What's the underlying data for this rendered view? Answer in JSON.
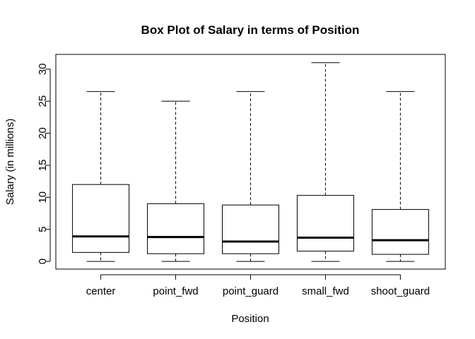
{
  "chart_data": {
    "type": "boxplot",
    "title": "Box Plot of Salary in terms of Position",
    "xlabel": "Position",
    "ylabel": "Salary (in millions)",
    "ylim": [
      -1.2,
      32.3
    ],
    "yticks": [
      0,
      5,
      10,
      15,
      20,
      25,
      30
    ],
    "grid": false,
    "categories": [
      "center",
      "point_fwd",
      "point_guard",
      "small_fwd",
      "shoot_guard"
    ],
    "boxes": [
      {
        "category": "center",
        "min": 0.0,
        "q1": 1.4,
        "median": 3.9,
        "q3": 12.0,
        "max": 26.5
      },
      {
        "category": "point_fwd",
        "min": 0.0,
        "q1": 1.2,
        "median": 3.8,
        "q3": 9.0,
        "max": 25.0
      },
      {
        "category": "point_guard",
        "min": 0.0,
        "q1": 1.2,
        "median": 3.1,
        "q3": 8.8,
        "max": 26.5
      },
      {
        "category": "small_fwd",
        "min": 0.0,
        "q1": 1.6,
        "median": 3.7,
        "q3": 10.3,
        "max": 31.0
      },
      {
        "category": "shoot_guard",
        "min": 0.0,
        "q1": 1.1,
        "median": 3.3,
        "q3": 8.1,
        "max": 26.5
      }
    ]
  }
}
